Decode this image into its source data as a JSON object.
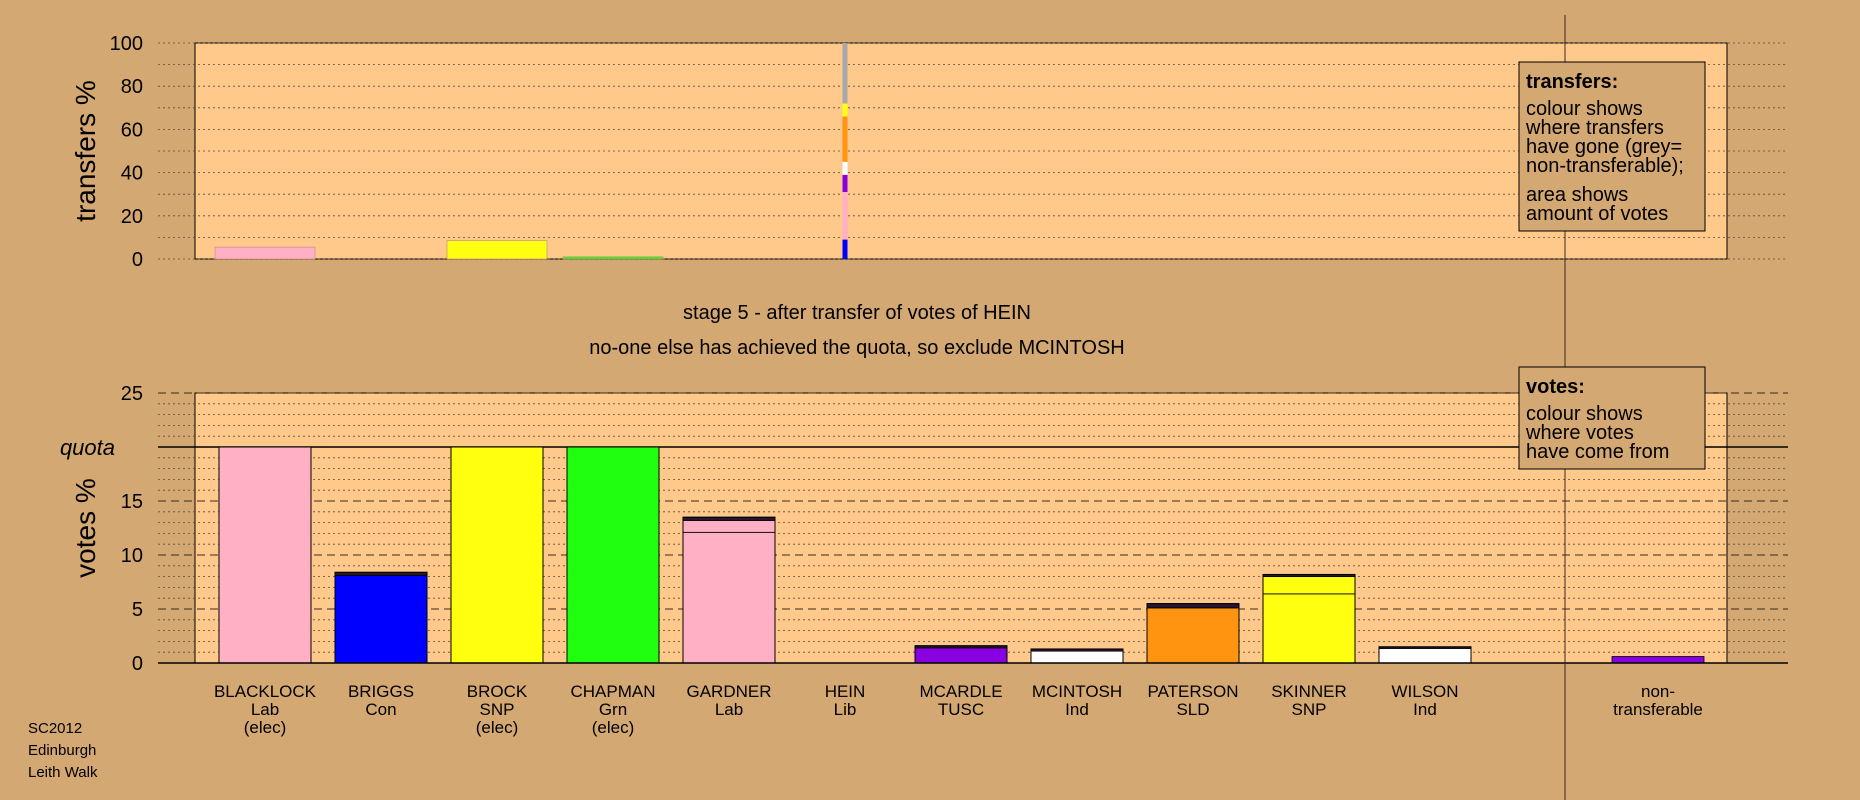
{
  "source": {
    "line1": "SC2012",
    "line2": "Edinburgh",
    "line3": "Leith Walk"
  },
  "headline": {
    "line1": "stage 5 - after transfer of votes of HEIN",
    "line2": "no-one else has achieved the quota, so exclude MCINTOSH"
  },
  "colors": {
    "background": "#d4a872",
    "plot": "#ffc98c",
    "Lab": "#ffb0c4",
    "Con": "#0000ff",
    "SNP": "#ffff10",
    "Grn": "#20ff10",
    "Lib": "#ffc98c",
    "TUSC": "#8800e0",
    "Ind": "#ffffff",
    "SLD": "#ff9410",
    "nontransferable": "#a8a8a8",
    "dark": "#2a1530"
  },
  "legend_transfers": {
    "title": "transfers:",
    "lines": [
      "colour shows",
      "where transfers",
      "have gone (grey=",
      "non-transferable);",
      "area shows",
      "amount of votes"
    ]
  },
  "legend_votes": {
    "title": "votes:",
    "lines": [
      "colour shows",
      "where votes",
      "have come from"
    ]
  },
  "chart_data": [
    {
      "type": "bar",
      "name": "transfers",
      "ylabel": "transfers %",
      "ylim": [
        0,
        100
      ],
      "yticks": [
        0,
        20,
        40,
        60,
        80,
        100
      ],
      "categories": [
        "BLACKLOCK",
        "BRIGGS",
        "BROCK",
        "CHAPMAN",
        "GARDNER",
        "HEIN",
        "MCARDLE",
        "MCINTOSH",
        "PATERSON",
        "SKINNER",
        "WILSON"
      ],
      "values": [
        5.5,
        0,
        8.5,
        1,
        0,
        0,
        0,
        0,
        0,
        0,
        0
      ],
      "bar_colors": [
        "Lab",
        "Con",
        "SNP",
        "Grn",
        "Lab",
        "Lib",
        "TUSC",
        "Ind",
        "SLD",
        "SNP",
        "Ind"
      ],
      "transfer_column": {
        "candidate": "HEIN",
        "segments": [
          {
            "to": "Con",
            "from": 0,
            "to_value": 9
          },
          {
            "to": "Lab",
            "from": 9,
            "to_value": 22
          },
          {
            "to": "Lab",
            "from": 22,
            "to_value": 31
          },
          {
            "to": "TUSC",
            "from": 31,
            "to_value": 39
          },
          {
            "to": "Ind",
            "from": 39,
            "to_value": 45
          },
          {
            "to": "SLD",
            "from": 45,
            "to_value": 66
          },
          {
            "to": "SNP",
            "from": 66,
            "to_value": 72
          },
          {
            "to": "nontransferable",
            "from": 72,
            "to_value": 100
          }
        ]
      }
    },
    {
      "type": "bar",
      "name": "votes",
      "ylabel": "votes %",
      "ylim": [
        0,
        25
      ],
      "yticks": [
        0,
        5,
        10,
        15,
        20,
        25
      ],
      "quota": {
        "label": "quota",
        "value": 20
      },
      "candidates": [
        {
          "name": "BLACKLOCK",
          "party": "Lab",
          "status": "(elec)",
          "value": 20,
          "segments": [
            {
              "color": "Lab",
              "value": 20
            }
          ]
        },
        {
          "name": "BRIGGS",
          "party": "Con",
          "status": "",
          "value": 8.4,
          "segments": [
            {
              "color": "Con",
              "value": 8.1
            },
            {
              "color": "dark",
              "value": 0.3
            }
          ]
        },
        {
          "name": "BROCK",
          "party": "SNP",
          "status": "(elec)",
          "value": 20,
          "segments": [
            {
              "color": "SNP",
              "value": 20
            }
          ]
        },
        {
          "name": "CHAPMAN",
          "party": "Grn",
          "status": "(elec)",
          "value": 20,
          "segments": [
            {
              "color": "Grn",
              "value": 20
            }
          ]
        },
        {
          "name": "GARDNER",
          "party": "Lab",
          "status": "",
          "value": 13.5,
          "segments": [
            {
              "color": "Lab",
              "value": 12.1
            },
            {
              "color": "Lab",
              "value": 1.1
            },
            {
              "color": "dark",
              "value": 0.3
            }
          ]
        },
        {
          "name": "HEIN",
          "party": "Lib",
          "status": "",
          "value": 0,
          "segments": []
        },
        {
          "name": "MCARDLE",
          "party": "TUSC",
          "status": "",
          "value": 1.6,
          "segments": [
            {
              "color": "TUSC",
              "value": 1.4
            },
            {
              "color": "dark",
              "value": 0.2
            }
          ]
        },
        {
          "name": "MCINTOSH",
          "party": "Ind",
          "status": "",
          "value": 1.3,
          "segments": [
            {
              "color": "Ind",
              "value": 1.1
            },
            {
              "color": "dark",
              "value": 0.2
            }
          ]
        },
        {
          "name": "PATERSON",
          "party": "SLD",
          "status": "",
          "value": 5.5,
          "segments": [
            {
              "color": "SLD",
              "value": 5.1
            },
            {
              "color": "dark",
              "value": 0.4
            }
          ]
        },
        {
          "name": "SKINNER",
          "party": "SNP",
          "status": "",
          "value": 8.2,
          "segments": [
            {
              "color": "SNP",
              "value": 6.4
            },
            {
              "color": "SNP",
              "value": 1.6
            },
            {
              "color": "dark",
              "value": 0.2
            }
          ]
        },
        {
          "name": "WILSON",
          "party": "Ind",
          "status": "",
          "value": 1.5,
          "segments": [
            {
              "color": "Ind",
              "value": 1.35
            },
            {
              "color": "dark",
              "value": 0.15
            }
          ]
        }
      ],
      "nontransferable": {
        "label1": "non-",
        "label2": "transferable",
        "value": 0.6
      }
    }
  ]
}
